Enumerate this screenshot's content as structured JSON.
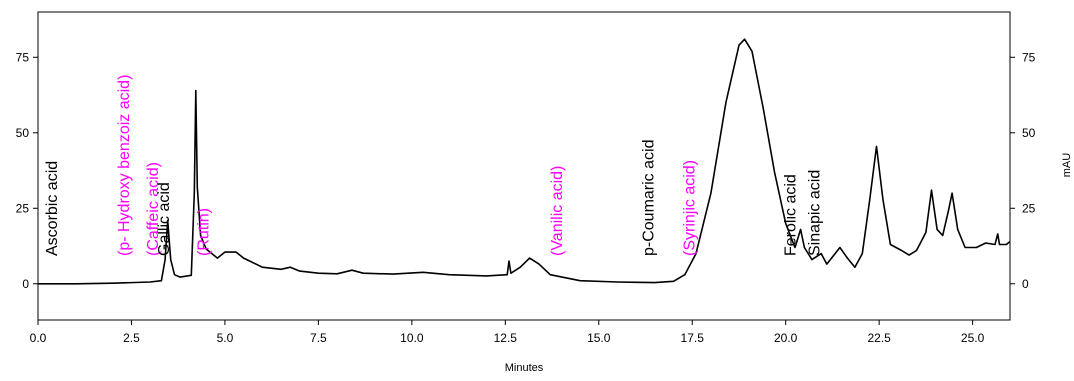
{
  "chart_data": {
    "type": "line",
    "title": "",
    "xlabel": "Minutes",
    "ylabel_right": "mAU",
    "xlim": [
      0,
      26
    ],
    "ylim": [
      -12,
      90
    ],
    "x_ticks": [
      0.0,
      2.5,
      5.0,
      7.5,
      10.0,
      12.5,
      15.0,
      17.5,
      20.0,
      22.5,
      25.0
    ],
    "x_tick_labels": [
      "0.0",
      "2.5",
      "5.0",
      "7.5",
      "10.0",
      "12.5",
      "15.0",
      "17.5",
      "20.0",
      "22.5",
      "25.0"
    ],
    "y_ticks": [
      0,
      25,
      50,
      75
    ],
    "y_tick_labels": [
      "0",
      "25",
      "50",
      "75"
    ],
    "grid": false,
    "line_color": "#000000",
    "series": [
      {
        "values": [
          [
            0.0,
            0.0
          ],
          [
            1.0,
            0.0
          ],
          [
            2.0,
            0.2
          ],
          [
            3.0,
            0.6
          ],
          [
            3.3,
            1.0
          ],
          [
            3.4,
            8.0
          ],
          [
            3.47,
            21.0
          ],
          [
            3.55,
            8.0
          ],
          [
            3.65,
            3.0
          ],
          [
            3.8,
            2.2
          ],
          [
            4.1,
            2.8
          ],
          [
            4.18,
            30.0
          ],
          [
            4.22,
            64.0
          ],
          [
            4.26,
            32.0
          ],
          [
            4.35,
            16.0
          ],
          [
            4.5,
            11.5
          ],
          [
            4.8,
            8.5
          ],
          [
            5.0,
            10.5
          ],
          [
            5.3,
            10.5
          ],
          [
            5.5,
            8.5
          ],
          [
            6.0,
            5.5
          ],
          [
            6.5,
            4.8
          ],
          [
            6.75,
            5.5
          ],
          [
            7.0,
            4.2
          ],
          [
            7.5,
            3.5
          ],
          [
            8.0,
            3.3
          ],
          [
            8.4,
            4.5
          ],
          [
            8.7,
            3.5
          ],
          [
            9.5,
            3.2
          ],
          [
            10.3,
            3.8
          ],
          [
            11.0,
            3.0
          ],
          [
            12.0,
            2.6
          ],
          [
            12.55,
            3.0
          ],
          [
            12.6,
            7.5
          ],
          [
            12.65,
            3.5
          ],
          [
            12.9,
            5.5
          ],
          [
            13.15,
            8.5
          ],
          [
            13.4,
            6.5
          ],
          [
            13.7,
            3.0
          ],
          [
            14.5,
            1.0
          ],
          [
            15.5,
            0.6
          ],
          [
            16.5,
            0.4
          ],
          [
            17.0,
            0.8
          ],
          [
            17.3,
            3.0
          ],
          [
            17.6,
            10.0
          ],
          [
            18.0,
            30.0
          ],
          [
            18.4,
            60.0
          ],
          [
            18.75,
            79.0
          ],
          [
            18.9,
            81.0
          ],
          [
            19.1,
            77.0
          ],
          [
            19.4,
            58.0
          ],
          [
            19.7,
            37.0
          ],
          [
            20.0,
            20.0
          ],
          [
            20.25,
            12.0
          ],
          [
            20.4,
            18.0
          ],
          [
            20.5,
            12.0
          ],
          [
            20.7,
            8.0
          ],
          [
            20.95,
            10.0
          ],
          [
            21.1,
            6.5
          ],
          [
            21.45,
            12.0
          ],
          [
            21.65,
            8.5
          ],
          [
            21.85,
            5.5
          ],
          [
            22.05,
            10.0
          ],
          [
            22.25,
            28.0
          ],
          [
            22.43,
            45.5
          ],
          [
            22.6,
            28.0
          ],
          [
            22.8,
            13.0
          ],
          [
            23.1,
            11.0
          ],
          [
            23.3,
            9.5
          ],
          [
            23.5,
            11.0
          ],
          [
            23.75,
            17.0
          ],
          [
            23.9,
            31.0
          ],
          [
            24.05,
            18.0
          ],
          [
            24.2,
            16.0
          ],
          [
            24.35,
            24.0
          ],
          [
            24.45,
            30.0
          ],
          [
            24.6,
            18.0
          ],
          [
            24.8,
            12.0
          ],
          [
            25.1,
            12.0
          ],
          [
            25.35,
            13.5
          ],
          [
            25.6,
            13.0
          ],
          [
            25.67,
            16.5
          ],
          [
            25.72,
            13.0
          ],
          [
            25.9,
            13.0
          ],
          [
            26.0,
            14.0
          ]
        ]
      }
    ],
    "annotations": [
      {
        "text": "Ascorbic acid",
        "x": 0.35,
        "color": "#000000"
      },
      {
        "text": "(p- Hydroxy benzoiz acid)",
        "x": 2.28,
        "color": "#ff00ff"
      },
      {
        "text": "(Caffeic acid)",
        "x": 3.05,
        "color": "#ff00ff"
      },
      {
        "text": "Gallic acid",
        "x": 3.35,
        "color": "#000000"
      },
      {
        "text": "(Rutin)",
        "x": 4.4,
        "color": "#ff00ff"
      },
      {
        "text": "(Vanilic acid)",
        "x": 13.85,
        "color": "#ff00ff"
      },
      {
        "text": "p-Coumaric acid",
        "x": 16.3,
        "color": "#000000"
      },
      {
        "text": "(Syrinjic acid)",
        "x": 17.4,
        "color": "#ff00ff"
      },
      {
        "text": "Ferolic acid",
        "x": 20.1,
        "color": "#000000"
      },
      {
        "text": "Sinapic acid",
        "x": 20.75,
        "color": "#000000"
      }
    ]
  }
}
